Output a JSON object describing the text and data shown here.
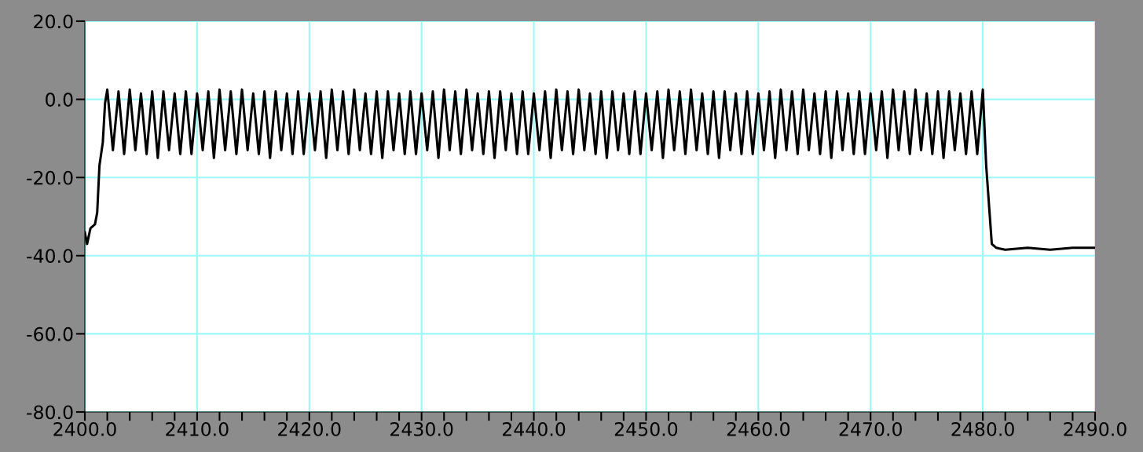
{
  "chart_data": {
    "type": "line",
    "x": [
      2400,
      2400.2,
      2400.5,
      2400.9,
      2401.1,
      2401.3,
      2401.6,
      2401.8,
      2402,
      2402.5,
      2403,
      2403.5,
      2404,
      2404.5,
      2405,
      2405.5,
      2406,
      2406.5,
      2407,
      2407.5,
      2408,
      2408.5,
      2409,
      2409.5,
      2410,
      2410.5,
      2411,
      2411.5,
      2412,
      2412.5,
      2413,
      2413.5,
      2414,
      2414.5,
      2415,
      2415.5,
      2416,
      2416.5,
      2417,
      2417.5,
      2418,
      2418.5,
      2419,
      2419.5,
      2420,
      2420.5,
      2421,
      2421.5,
      2422,
      2422.5,
      2423,
      2423.5,
      2424,
      2424.5,
      2425,
      2425.5,
      2426,
      2426.5,
      2427,
      2427.5,
      2428,
      2428.5,
      2429,
      2429.5,
      2430,
      2430.5,
      2431,
      2431.5,
      2432,
      2432.5,
      2433,
      2433.5,
      2434,
      2434.5,
      2435,
      2435.5,
      2436,
      2436.5,
      2437,
      2437.5,
      2438,
      2438.5,
      2439,
      2439.5,
      2440,
      2440.5,
      2441,
      2441.5,
      2442,
      2442.5,
      2443,
      2443.5,
      2444,
      2444.5,
      2445,
      2445.5,
      2446,
      2446.5,
      2447,
      2447.5,
      2448,
      2448.5,
      2449,
      2449.5,
      2450,
      2450.5,
      2451,
      2451.5,
      2452,
      2452.5,
      2453,
      2453.5,
      2454,
      2454.5,
      2455,
      2455.5,
      2456,
      2456.5,
      2457,
      2457.5,
      2458,
      2458.5,
      2459,
      2459.5,
      2460,
      2460.5,
      2461,
      2461.5,
      2462,
      2462.5,
      2463,
      2463.5,
      2464,
      2464.5,
      2465,
      2465.5,
      2466,
      2466.5,
      2467,
      2467.5,
      2468,
      2468.5,
      2469,
      2469.5,
      2470,
      2470.5,
      2471,
      2471.5,
      2472,
      2472.5,
      2473,
      2473.5,
      2474,
      2474.5,
      2475,
      2475.5,
      2476,
      2476.5,
      2477,
      2477.5,
      2478,
      2478.5,
      2479,
      2479.5,
      2480,
      2480.3,
      2480.6,
      2480.8,
      2481.2,
      2482,
      2484,
      2486,
      2488,
      2490
    ],
    "values": [
      -34,
      -37,
      -33,
      -32,
      -29,
      -17,
      -11,
      -1,
      2.5,
      -13,
      2,
      -14,
      2.5,
      -13,
      1.5,
      -14,
      2,
      -15,
      2,
      -13,
      1.5,
      -14,
      2,
      -14,
      1.5,
      -13,
      2,
      -15,
      2.5,
      -13,
      2,
      -14,
      2.5,
      -13,
      1.5,
      -14,
      2,
      -15,
      2,
      -13,
      1.5,
      -14,
      2,
      -14,
      1.5,
      -13,
      2,
      -15,
      2.5,
      -13,
      2,
      -14,
      2.5,
      -13,
      1.5,
      -14,
      2,
      -15,
      2,
      -13,
      1.5,
      -14,
      2,
      -14,
      1.5,
      -13,
      2,
      -15,
      2.5,
      -13,
      2,
      -14,
      2.5,
      -13,
      1.5,
      -14,
      2,
      -15,
      2,
      -13,
      1.5,
      -14,
      2,
      -14,
      1.5,
      -13,
      2,
      -15,
      2.5,
      -13,
      2,
      -14,
      2.5,
      -13,
      1.5,
      -14,
      2,
      -15,
      2,
      -13,
      1.5,
      -14,
      2,
      -14,
      1.5,
      -13,
      2,
      -15,
      2.5,
      -13,
      2,
      -14,
      2.5,
      -13,
      1.5,
      -14,
      2,
      -15,
      2,
      -13,
      1.5,
      -14,
      2,
      -14,
      1.5,
      -13,
      2,
      -15,
      2.5,
      -13,
      2,
      -14,
      2.5,
      -13,
      1.5,
      -14,
      2,
      -15,
      2,
      -13,
      1.5,
      -14,
      2,
      -14,
      1.5,
      -13,
      2,
      -15,
      2.5,
      -13,
      2,
      -14,
      2.5,
      -13,
      1.5,
      -14,
      2,
      -15,
      2,
      -13,
      1.5,
      -14,
      2,
      -14,
      2.5,
      -17,
      -29,
      -37,
      -38,
      -38.5,
      -38,
      -38.5,
      -38,
      -38
    ],
    "color": "#000000",
    "line_style": "solid",
    "marker": "none",
    "xlim": [
      2400,
      2490
    ],
    "ylim": [
      -80,
      20
    ],
    "xticks": [
      {
        "value": 2400,
        "label": "2400.0"
      },
      {
        "value": 2402,
        "label": null
      },
      {
        "value": 2404,
        "label": null
      },
      {
        "value": 2406,
        "label": null
      },
      {
        "value": 2408,
        "label": null
      },
      {
        "value": 2410,
        "label": "2410.0"
      },
      {
        "value": 2412,
        "label": null
      },
      {
        "value": 2414,
        "label": null
      },
      {
        "value": 2416,
        "label": null
      },
      {
        "value": 2418,
        "label": null
      },
      {
        "value": 2420,
        "label": "2420.0"
      },
      {
        "value": 2422,
        "label": null
      },
      {
        "value": 2424,
        "label": null
      },
      {
        "value": 2426,
        "label": null
      },
      {
        "value": 2428,
        "label": null
      },
      {
        "value": 2430,
        "label": "2430.0"
      },
      {
        "value": 2432,
        "label": null
      },
      {
        "value": 2434,
        "label": null
      },
      {
        "value": 2436,
        "label": null
      },
      {
        "value": 2438,
        "label": null
      },
      {
        "value": 2440,
        "label": "2440.0"
      },
      {
        "value": 2442,
        "label": null
      },
      {
        "value": 2444,
        "label": null
      },
      {
        "value": 2446,
        "label": null
      },
      {
        "value": 2448,
        "label": null
      },
      {
        "value": 2450,
        "label": "2450.0"
      },
      {
        "value": 2452,
        "label": null
      },
      {
        "value": 2454,
        "label": null
      },
      {
        "value": 2456,
        "label": null
      },
      {
        "value": 2458,
        "label": null
      },
      {
        "value": 2460,
        "label": "2460.0"
      },
      {
        "value": 2462,
        "label": null
      },
      {
        "value": 2464,
        "label": null
      },
      {
        "value": 2466,
        "label": null
      },
      {
        "value": 2468,
        "label": null
      },
      {
        "value": 2470,
        "label": "2470.0"
      },
      {
        "value": 2472,
        "label": null
      },
      {
        "value": 2474,
        "label": null
      },
      {
        "value": 2476,
        "label": null
      },
      {
        "value": 2478,
        "label": null
      },
      {
        "value": 2480,
        "label": "2480.0"
      },
      {
        "value": 2482,
        "label": null
      },
      {
        "value": 2484,
        "label": null
      },
      {
        "value": 2486,
        "label": null
      },
      {
        "value": 2488,
        "label": null
      },
      {
        "value": 2490,
        "label": "2490.0"
      }
    ],
    "yticks": [
      {
        "value": -80,
        "label": "-80.0"
      },
      {
        "value": -60,
        "label": "-60.0"
      },
      {
        "value": -40,
        "label": "-40.0"
      },
      {
        "value": -20,
        "label": "-20.0"
      },
      {
        "value": 0,
        "label": "0.0"
      },
      {
        "value": 20,
        "label": "20.0"
      }
    ],
    "grid": true,
    "legend": false
  }
}
